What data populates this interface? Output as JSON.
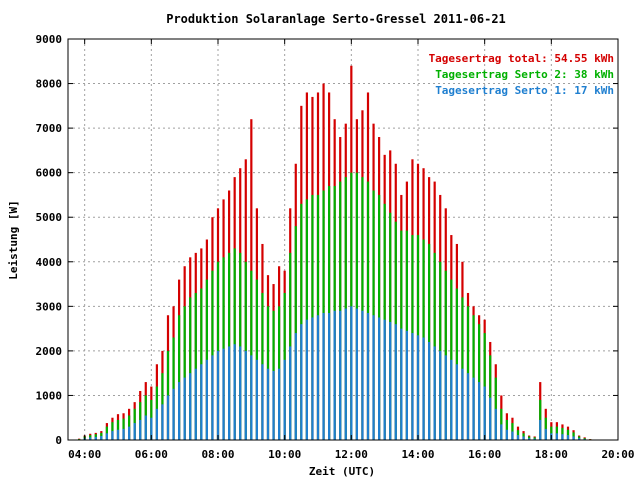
{
  "chart_data": {
    "type": "bar",
    "title": "Produktion Solaranlage Serto-Gressel 2011-06-21",
    "xlabel": "Zeit (UTC)",
    "ylabel": "Leistung [W]",
    "xlim": [
      "03:30",
      "20:00"
    ],
    "ylim": [
      0,
      9000
    ],
    "xticks": [
      "04:00",
      "06:00",
      "08:00",
      "10:00",
      "12:00",
      "14:00",
      "16:00",
      "18:00",
      "20:00"
    ],
    "yticks": [
      0,
      1000,
      2000,
      3000,
      4000,
      5000,
      6000,
      7000,
      8000,
      9000
    ],
    "grid": true,
    "legend_position": "top-right",
    "series": [
      {
        "name": "Tagesertrag total: 54.55 kWh",
        "color": "#d40000",
        "x": [
          "03:50",
          "04:00",
          "04:10",
          "04:20",
          "04:30",
          "04:40",
          "04:50",
          "05:00",
          "05:10",
          "05:20",
          "05:30",
          "05:40",
          "05:50",
          "06:00",
          "06:10",
          "06:20",
          "06:30",
          "06:40",
          "06:50",
          "07:00",
          "07:10",
          "07:20",
          "07:30",
          "07:40",
          "07:50",
          "08:00",
          "08:10",
          "08:20",
          "08:30",
          "08:40",
          "08:50",
          "09:00",
          "09:10",
          "09:20",
          "09:30",
          "09:40",
          "09:50",
          "10:00",
          "10:10",
          "10:20",
          "10:30",
          "10:40",
          "10:50",
          "11:00",
          "11:10",
          "11:20",
          "11:30",
          "11:40",
          "11:50",
          "12:00",
          "12:10",
          "12:20",
          "12:30",
          "12:40",
          "12:50",
          "13:00",
          "13:10",
          "13:20",
          "13:30",
          "13:40",
          "13:50",
          "14:00",
          "14:10",
          "14:20",
          "14:30",
          "14:40",
          "14:50",
          "15:00",
          "15:10",
          "15:20",
          "15:30",
          "15:40",
          "15:50",
          "16:00",
          "16:10",
          "16:20",
          "16:30",
          "16:40",
          "16:50",
          "17:00",
          "17:10",
          "17:20",
          "17:30",
          "17:40",
          "17:50",
          "18:00",
          "18:10",
          "18:20",
          "18:30",
          "18:40",
          "18:50",
          "19:00",
          "19:10"
        ],
        "values": [
          30,
          100,
          140,
          160,
          200,
          380,
          500,
          580,
          600,
          700,
          850,
          1100,
          1300,
          1200,
          1700,
          2000,
          2800,
          3000,
          3600,
          3900,
          4100,
          4200,
          4300,
          4500,
          5000,
          5200,
          5400,
          5600,
          5900,
          6100,
          6300,
          7200,
          5200,
          4400,
          3700,
          3500,
          3900,
          3800,
          5200,
          6200,
          7500,
          7800,
          7700,
          7800,
          8000,
          7800,
          7200,
          6800,
          7100,
          8400,
          7200,
          7400,
          7800,
          7100,
          6800,
          6400,
          6500,
          6200,
          5500,
          5800,
          6300,
          6200,
          6100,
          5900,
          5800,
          5500,
          5200,
          4600,
          4400,
          4000,
          3300,
          3000,
          2800,
          2700,
          2200,
          1700,
          1000,
          600,
          500,
          300,
          200,
          100,
          80,
          1300,
          700,
          400,
          400,
          350,
          300,
          220,
          100,
          60,
          20
        ]
      },
      {
        "name": "Tagesertrag Serto 2: 38 kWh",
        "color": "#00b000",
        "x": [
          "03:50",
          "04:00",
          "04:10",
          "04:20",
          "04:30",
          "04:40",
          "04:50",
          "05:00",
          "05:10",
          "05:20",
          "05:30",
          "05:40",
          "05:50",
          "06:00",
          "06:10",
          "06:20",
          "06:30",
          "06:40",
          "06:50",
          "07:00",
          "07:10",
          "07:20",
          "07:30",
          "07:40",
          "07:50",
          "08:00",
          "08:10",
          "08:20",
          "08:30",
          "08:40",
          "08:50",
          "09:00",
          "09:10",
          "09:20",
          "09:30",
          "09:40",
          "09:50",
          "10:00",
          "10:10",
          "10:20",
          "10:30",
          "10:40",
          "10:50",
          "11:00",
          "11:10",
          "11:20",
          "11:30",
          "11:40",
          "11:50",
          "12:00",
          "12:10",
          "12:20",
          "12:30",
          "12:40",
          "12:50",
          "13:00",
          "13:10",
          "13:20",
          "13:30",
          "13:40",
          "13:50",
          "14:00",
          "14:10",
          "14:20",
          "14:30",
          "14:40",
          "14:50",
          "15:00",
          "15:10",
          "15:20",
          "15:30",
          "15:40",
          "15:50",
          "16:00",
          "16:10",
          "16:20",
          "16:30",
          "16:40",
          "16:50",
          "17:00",
          "17:10",
          "17:20",
          "17:30",
          "17:40",
          "17:50",
          "18:00",
          "18:10",
          "18:20",
          "18:30",
          "18:40",
          "18:50",
          "19:00",
          "19:10"
        ],
        "values": [
          20,
          80,
          110,
          130,
          160,
          300,
          400,
          450,
          480,
          550,
          700,
          850,
          1000,
          900,
          1200,
          1500,
          2000,
          2300,
          2800,
          3000,
          3200,
          3300,
          3400,
          3600,
          3800,
          4000,
          4100,
          4200,
          4300,
          4200,
          4000,
          3800,
          3600,
          3300,
          3000,
          2900,
          3000,
          3300,
          4200,
          4800,
          5300,
          5400,
          5500,
          5500,
          5600,
          5700,
          5700,
          5800,
          5900,
          6000,
          6000,
          5900,
          5800,
          5600,
          5500,
          5300,
          5100,
          4900,
          4700,
          4700,
          4600,
          4600,
          4500,
          4400,
          4200,
          4000,
          3800,
          3600,
          3400,
          3200,
          3000,
          2800,
          2600,
          2400,
          1900,
          1400,
          700,
          450,
          380,
          220,
          150,
          80,
          60,
          900,
          500,
          300,
          300,
          270,
          230,
          170,
          80,
          40,
          15
        ]
      },
      {
        "name": "Tagesertrag Serto 1: 17 kWh",
        "color": "#1f7fd0",
        "x": [
          "03:50",
          "04:00",
          "04:10",
          "04:20",
          "04:30",
          "04:40",
          "04:50",
          "05:00",
          "05:10",
          "05:20",
          "05:30",
          "05:40",
          "05:50",
          "06:00",
          "06:10",
          "06:20",
          "06:30",
          "06:40",
          "06:50",
          "07:00",
          "07:10",
          "07:20",
          "07:30",
          "07:40",
          "07:50",
          "08:00",
          "08:10",
          "08:20",
          "08:30",
          "08:40",
          "08:50",
          "09:00",
          "09:10",
          "09:20",
          "09:30",
          "09:40",
          "09:50",
          "10:00",
          "10:10",
          "10:20",
          "10:30",
          "10:40",
          "10:50",
          "11:00",
          "11:10",
          "11:20",
          "11:30",
          "11:40",
          "11:50",
          "12:00",
          "12:10",
          "12:20",
          "12:30",
          "12:40",
          "12:50",
          "13:00",
          "13:10",
          "13:20",
          "13:30",
          "13:40",
          "13:50",
          "14:00",
          "14:10",
          "14:20",
          "14:30",
          "14:40",
          "14:50",
          "15:00",
          "15:10",
          "15:20",
          "15:30",
          "15:40",
          "15:50",
          "16:00",
          "16:10",
          "16:20",
          "16:30",
          "16:40",
          "16:50",
          "17:00",
          "17:10",
          "17:20",
          "17:30",
          "17:40",
          "17:50",
          "18:00",
          "18:10",
          "18:20",
          "18:30",
          "18:40",
          "18:50",
          "19:00",
          "19:10"
        ],
        "values": [
          10,
          40,
          60,
          70,
          90,
          150,
          200,
          230,
          250,
          300,
          380,
          450,
          550,
          500,
          700,
          800,
          1000,
          1150,
          1300,
          1400,
          1500,
          1600,
          1700,
          1800,
          1900,
          2000,
          2050,
          2100,
          2150,
          2100,
          2000,
          1900,
          1800,
          1700,
          1600,
          1550,
          1600,
          1800,
          2100,
          2400,
          2600,
          2700,
          2750,
          2800,
          2850,
          2850,
          2900,
          2900,
          2950,
          3000,
          2950,
          2900,
          2850,
          2800,
          2750,
          2700,
          2650,
          2600,
          2500,
          2450,
          2400,
          2350,
          2300,
          2200,
          2100,
          2000,
          1900,
          1800,
          1700,
          1600,
          1500,
          1400,
          1300,
          1200,
          950,
          700,
          350,
          230,
          190,
          110,
          80,
          40,
          30,
          450,
          250,
          150,
          150,
          130,
          110,
          80,
          40,
          20,
          8
        ]
      }
    ]
  }
}
